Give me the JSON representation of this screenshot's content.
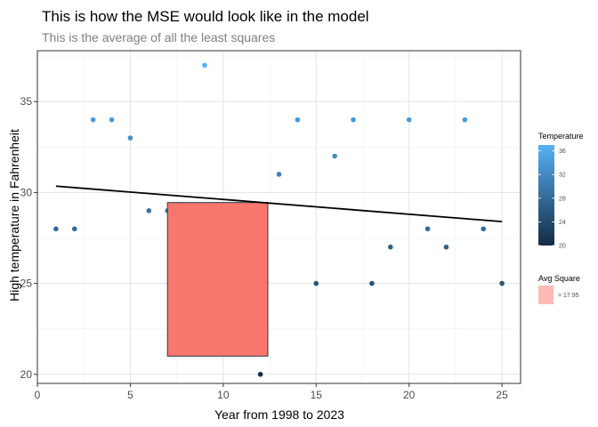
{
  "chart_data": {
    "type": "scatter",
    "title": "This is how the MSE would look like in the model",
    "subtitle": "This is the average of all the least squares",
    "xlabel": "Year from 1998 to 2023",
    "ylabel": "High temperature in Fahrenheit",
    "xlim": [
      0,
      26
    ],
    "ylim": [
      19.5,
      37.8
    ],
    "x_ticks": [
      0,
      5,
      10,
      15,
      20,
      25
    ],
    "y_ticks": [
      20,
      25,
      30,
      35
    ],
    "grid": true,
    "points": [
      {
        "x": 1,
        "y": 28
      },
      {
        "x": 2,
        "y": 28
      },
      {
        "x": 3,
        "y": 34
      },
      {
        "x": 4,
        "y": 34
      },
      {
        "x": 5,
        "y": 33
      },
      {
        "x": 6,
        "y": 29
      },
      {
        "x": 7,
        "y": 29
      },
      {
        "x": 9,
        "y": 37
      },
      {
        "x": 12,
        "y": 20
      },
      {
        "x": 13,
        "y": 31
      },
      {
        "x": 14,
        "y": 34
      },
      {
        "x": 15,
        "y": 25
      },
      {
        "x": 16,
        "y": 32
      },
      {
        "x": 17,
        "y": 34
      },
      {
        "x": 18,
        "y": 25
      },
      {
        "x": 19,
        "y": 27
      },
      {
        "x": 20,
        "y": 34
      },
      {
        "x": 21,
        "y": 28
      },
      {
        "x": 22,
        "y": 27
      },
      {
        "x": 23,
        "y": 34
      },
      {
        "x": 24,
        "y": 28
      },
      {
        "x": 25,
        "y": 25
      }
    ],
    "regression_line": {
      "x": [
        1,
        25
      ],
      "y": [
        30.35,
        28.4
      ],
      "color": "#000000"
    },
    "avg_square": {
      "x_range": [
        7,
        12.4
      ],
      "y_range": [
        21.0,
        29.45
      ],
      "fill": "#f8766d",
      "label": "= 17.95"
    },
    "color_scale": {
      "low": "#132b43",
      "high": "#56b1f7",
      "min": 20,
      "max": 37
    },
    "legend": {
      "placement": "right",
      "color_title": "Temperature",
      "color_ticks": [
        36,
        32,
        28,
        24,
        20
      ],
      "square_title": "Avg Square",
      "square_label": "= 17.95"
    }
  }
}
